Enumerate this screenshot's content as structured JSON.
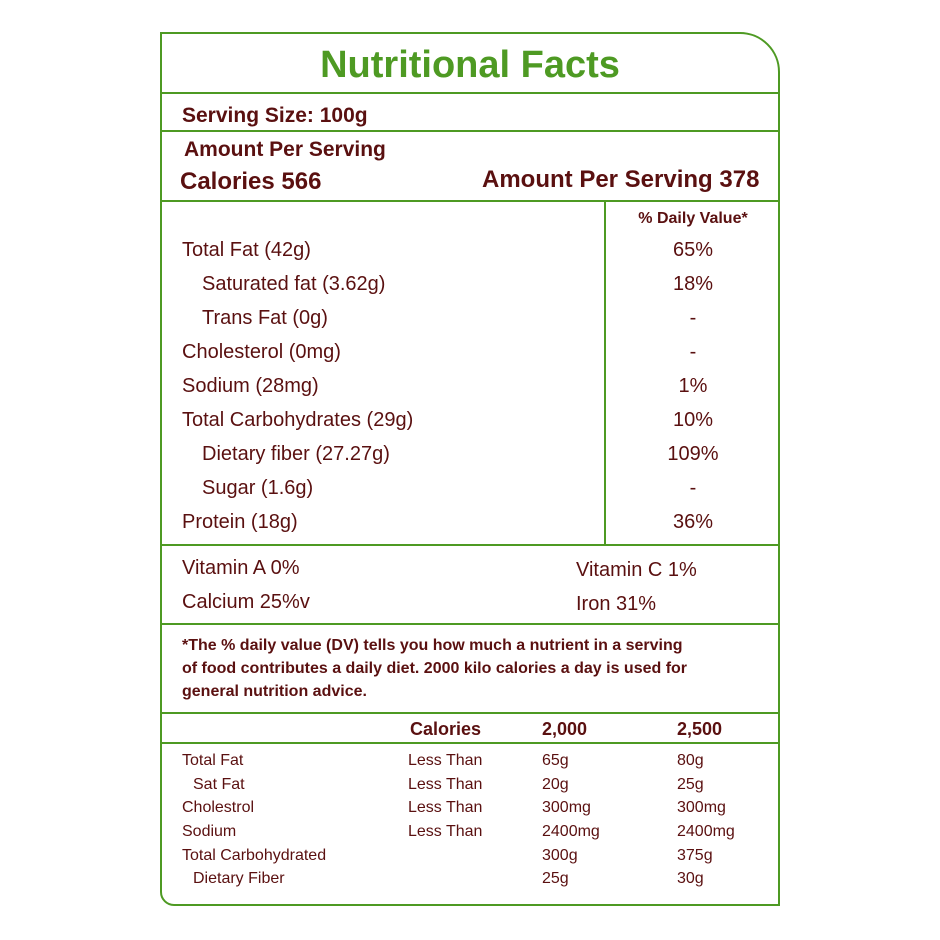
{
  "title": "Nutritional Facts",
  "serving_size": "Serving Size: 100g",
  "amount_per_serving": "Amount Per Serving",
  "calories": "Calories  566",
  "amount_per_serving_right": "Amount Per Serving 378",
  "daily_value_header": "% Daily Value*",
  "nutrients": [
    {
      "name": "Total Fat (42g)",
      "dv": "65%"
    },
    {
      "name": "Saturated fat (3.62g)",
      "dv": "18%"
    },
    {
      "name": "Trans Fat (0g)",
      "dv": "-"
    },
    {
      "name": "Cholesterol (0mg)",
      "dv": "-"
    },
    {
      "name": "Sodium (28mg)",
      "dv": "1%"
    },
    {
      "name": "Total Carbohydrates  (29g)",
      "dv": "10%"
    },
    {
      "name": "Dietary fiber (27.27g)",
      "dv": "109%"
    },
    {
      "name": "Sugar (1.6g)",
      "dv": "-"
    },
    {
      "name": "Protein (18g)",
      "dv": "36%"
    }
  ],
  "vitamins": {
    "vitamin_a": "Vitamin A 0%",
    "vitamin_c": "Vitamin C 1%",
    "calcium": "Calcium 25%v",
    "iron": "Iron 31%"
  },
  "footnote": [
    "*The % daily value (DV) tells you how much a nutrient in a serving",
    "of food contributes a daily diet. 2000 kilo calories a day is used for",
    "general nutrition advice."
  ],
  "reference": {
    "headers": [
      "Calories",
      "2,000",
      "2,500"
    ],
    "rows": [
      {
        "name": "Total Fat",
        "limit": "Less Than",
        "c2000": "65g",
        "c2500": "80g"
      },
      {
        "name": "Sat Fat",
        "limit": "Less Than",
        "c2000": "20g",
        "c2500": "25g"
      },
      {
        "name": "Cholestrol",
        "limit": "Less Than",
        "c2000": "300mg",
        "c2500": "300mg"
      },
      {
        "name": "Sodium",
        "limit": "Less Than",
        "c2000": "2400mg",
        "c2500": "2400mg"
      },
      {
        "name": "Total Carbohydrated",
        "limit": "",
        "c2000": "300g",
        "c2500": "375g"
      },
      {
        "name": "Dietary Fiber",
        "limit": "",
        "c2000": "25g",
        "c2500": "30g"
      }
    ]
  },
  "colors": {
    "border": "#4e9a23",
    "title": "#4e9a23",
    "text": "#5a1010"
  }
}
